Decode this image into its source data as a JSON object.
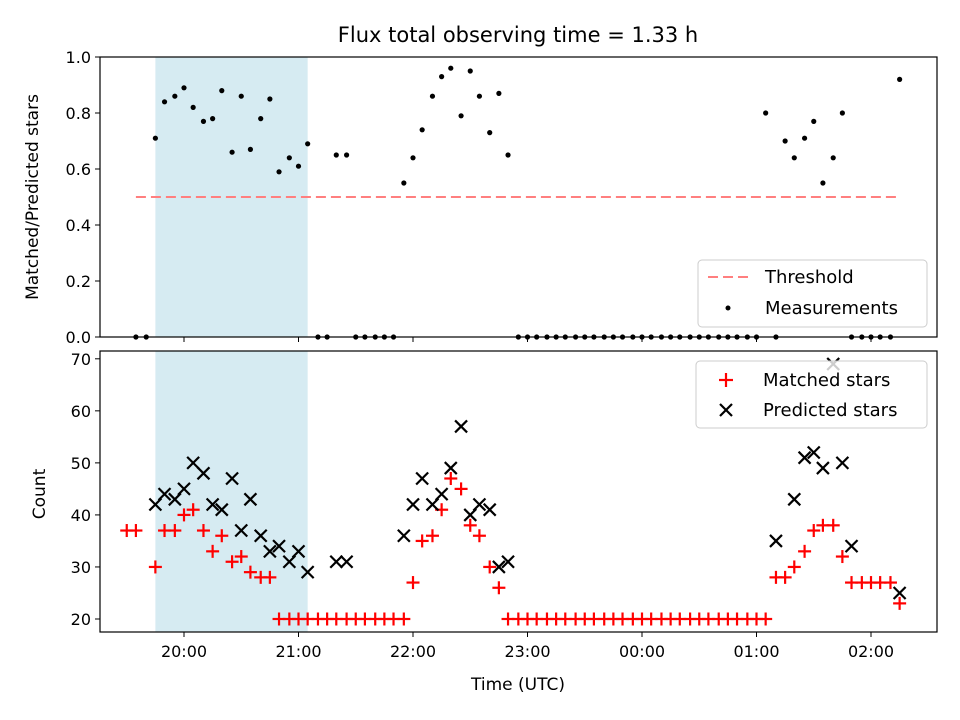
{
  "chart_data": [
    {
      "type": "scatter",
      "title": "Flux total observing time = 1.33 h",
      "xlabel": "",
      "ylabel": "Matched/Predicted stars",
      "ylim": [
        0,
        1.0
      ],
      "yticks": [
        "0.0",
        "0.2",
        "0.4",
        "0.6",
        "0.8",
        "1.0"
      ],
      "ytick_values": [
        0,
        0.2,
        0.4,
        0.6,
        0.8,
        1.0
      ],
      "xtick_hours": [
        20,
        21,
        22,
        23,
        24,
        25,
        26
      ],
      "shaded_interval_hours": [
        19.75,
        21.08
      ],
      "threshold": {
        "label": "Threshold",
        "value": 0.5,
        "x_range_hours": [
          19.58,
          26.25
        ],
        "color": "#ff7f7f"
      },
      "series": [
        {
          "name": "Measurements",
          "color": "#000000",
          "x_hours": [
            19.58,
            19.67,
            19.75,
            19.83,
            19.92,
            20.0,
            20.08,
            20.17,
            20.25,
            20.33,
            20.42,
            20.5,
            20.58,
            20.67,
            20.75,
            20.83,
            20.92,
            21.0,
            21.08,
            21.17,
            21.25,
            21.33,
            21.42,
            21.5,
            21.58,
            21.67,
            21.75,
            21.83,
            21.92,
            22.0,
            22.08,
            22.17,
            22.25,
            22.33,
            22.42,
            22.5,
            22.58,
            22.67,
            22.75,
            22.83,
            22.92,
            23.0,
            23.08,
            23.17,
            23.25,
            23.33,
            23.42,
            23.5,
            23.58,
            23.67,
            23.75,
            23.83,
            23.92,
            24.0,
            24.08,
            24.17,
            24.25,
            24.33,
            24.42,
            24.5,
            24.58,
            24.67,
            24.75,
            24.83,
            24.92,
            25.0,
            25.08,
            25.17,
            25.25,
            25.33,
            25.42,
            25.5,
            25.58,
            25.67,
            25.75,
            25.83,
            25.92,
            26.0,
            26.08,
            26.17,
            26.25
          ],
          "values": [
            0,
            0,
            0.71,
            0.84,
            0.86,
            0.89,
            0.82,
            0.77,
            0.78,
            0.88,
            0.66,
            0.86,
            0.67,
            0.78,
            0.85,
            0.59,
            0.64,
            0.61,
            0.69,
            0,
            0,
            0.65,
            0.65,
            0,
            0,
            0,
            0,
            0,
            0.55,
            0.64,
            0.74,
            0.86,
            0.93,
            0.96,
            0.79,
            0.95,
            0.86,
            0.73,
            0.87,
            0.65,
            0,
            0,
            0,
            0,
            0,
            0,
            0,
            0,
            0,
            0,
            0,
            0,
            0,
            0,
            0,
            0,
            0,
            0,
            0,
            0,
            0,
            0,
            0,
            0,
            0,
            0,
            0.8,
            0,
            0.7,
            0.64,
            0.71,
            0.77,
            0.55,
            0.64,
            0.8,
            0,
            0,
            0,
            0,
            0,
            0.92
          ]
        }
      ],
      "legend": {
        "position": "lower-right",
        "entries": [
          "Threshold",
          "Measurements"
        ]
      }
    },
    {
      "type": "scatter",
      "title": "",
      "xlabel": "Time (UTC)",
      "ylabel": "Count",
      "ylim": [
        17.5,
        71.5
      ],
      "yticks": [
        "20",
        "30",
        "40",
        "50",
        "60",
        "70"
      ],
      "ytick_values": [
        20,
        30,
        40,
        50,
        60,
        70
      ],
      "xticks": [
        "20:00",
        "21:00",
        "22:00",
        "23:00",
        "00:00",
        "01:00",
        "02:00"
      ],
      "xtick_hours": [
        20,
        21,
        22,
        23,
        24,
        25,
        26
      ],
      "shaded_interval_hours": [
        19.75,
        21.08
      ],
      "series": [
        {
          "name": "Matched stars",
          "marker": "plus",
          "color": "#ff0000",
          "x_hours": [
            19.5,
            19.58,
            19.75,
            19.83,
            19.92,
            20.0,
            20.08,
            20.17,
            20.25,
            20.33,
            20.42,
            20.5,
            20.58,
            20.67,
            20.75,
            20.83,
            20.92,
            21.0,
            21.08,
            21.17,
            21.25,
            21.33,
            21.42,
            21.5,
            21.58,
            21.67,
            21.75,
            21.83,
            21.92,
            22.0,
            22.08,
            22.17,
            22.25,
            22.33,
            22.42,
            22.5,
            22.58,
            22.67,
            22.75,
            22.83,
            22.92,
            23.0,
            23.08,
            23.17,
            23.25,
            23.33,
            23.42,
            23.5,
            23.58,
            23.67,
            23.75,
            23.83,
            23.92,
            24.0,
            24.08,
            24.17,
            24.25,
            24.33,
            24.42,
            24.5,
            24.58,
            24.67,
            24.75,
            24.83,
            24.92,
            25.0,
            25.08,
            25.17,
            25.25,
            25.33,
            25.42,
            25.5,
            25.58,
            25.67,
            25.75,
            25.83,
            25.92,
            26.0,
            26.08,
            26.17,
            26.25
          ],
          "values": [
            37,
            37,
            30,
            37,
            37,
            40,
            41,
            37,
            33,
            36,
            31,
            32,
            29,
            28,
            28,
            20,
            20,
            20,
            20,
            20,
            20,
            20,
            20,
            20,
            20,
            20,
            20,
            20,
            20,
            27,
            35,
            36,
            41,
            47,
            45,
            38,
            36,
            30,
            26,
            20,
            20,
            20,
            20,
            20,
            20,
            20,
            20,
            20,
            20,
            20,
            20,
            20,
            20,
            20,
            20,
            20,
            20,
            20,
            20,
            20,
            20,
            20,
            20,
            20,
            20,
            20,
            20,
            28,
            28,
            30,
            33,
            37,
            38,
            38,
            32,
            27,
            27,
            27,
            27,
            27,
            23
          ]
        },
        {
          "name": "Predicted stars",
          "marker": "x",
          "color": "#000000",
          "x_hours": [
            19.75,
            19.83,
            19.92,
            20.0,
            20.08,
            20.17,
            20.25,
            20.33,
            20.42,
            20.5,
            20.58,
            20.67,
            20.75,
            20.83,
            20.92,
            21.0,
            21.08,
            21.33,
            21.42,
            21.92,
            22.0,
            22.08,
            22.17,
            22.25,
            22.33,
            22.42,
            22.5,
            22.58,
            22.67,
            22.75,
            22.83,
            25.17,
            25.33,
            25.42,
            25.5,
            25.58,
            25.67,
            25.75,
            25.83,
            26.25
          ],
          "values": [
            42,
            44,
            43,
            45,
            50,
            48,
            42,
            41,
            47,
            37,
            43,
            36,
            33,
            34,
            31,
            33,
            29,
            31,
            31,
            36,
            42,
            47,
            42,
            44,
            49,
            57,
            40,
            42,
            41,
            30,
            31,
            35,
            43,
            51,
            52,
            49,
            69,
            50,
            34,
            25
          ]
        }
      ],
      "legend": {
        "position": "upper-right",
        "entries": [
          "Matched stars",
          "Predicted stars"
        ]
      }
    }
  ],
  "threshold_color": "#ff7f7f",
  "shade_color": "#add8e6"
}
